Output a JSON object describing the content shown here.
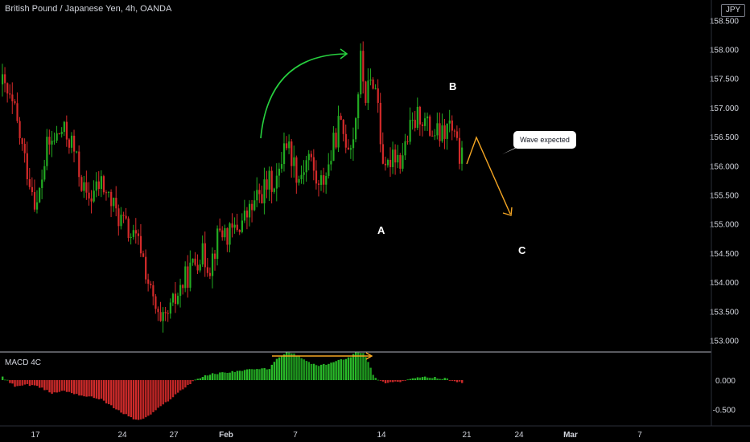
{
  "header": {
    "title": "British Pound / Japanese Yen, 4h, OANDA",
    "currency_badge": "JPY",
    "macd_title": "MACD 4C"
  },
  "annotations": {
    "callout_text": "Wave expected",
    "wave_labels": {
      "A": "A",
      "B": "B",
      "C": "C"
    }
  },
  "colors": {
    "up": "#22ab22",
    "down": "#d42a2a",
    "macd_up_bright": "#2ecc2e",
    "macd_down_bright": "#e63030",
    "arrow_green": "#27d13f",
    "arrow_orange": "#f5a623",
    "axis_text": "#d1d4dc"
  },
  "chart_data": [
    {
      "type": "candlestick",
      "title": "British Pound / Japanese Yen, 4h, OANDA",
      "ylim": [
        152.8,
        158.85
      ],
      "y_ticks": [
        "153.000",
        "153.500",
        "154.000",
        "154.500",
        "155.000",
        "155.500",
        "156.000",
        "156.500",
        "157.000",
        "157.500",
        "158.000",
        "158.500"
      ],
      "x_ticks": [
        "17",
        "24",
        "27",
        "Feb",
        "7",
        "14",
        "21",
        "24",
        "Mar",
        "7"
      ],
      "waypoints": [
        [
          0,
          157.4
        ],
        [
          5,
          156.9
        ],
        [
          9,
          156.1
        ],
        [
          14,
          155.3
        ],
        [
          18,
          156.3
        ],
        [
          24,
          156.6
        ],
        [
          28,
          156.4
        ],
        [
          34,
          155.4
        ],
        [
          40,
          155.7
        ],
        [
          46,
          155.2
        ],
        [
          52,
          154.8
        ],
        [
          56,
          154.6
        ],
        [
          60,
          153.8
        ],
        [
          64,
          153.2
        ],
        [
          68,
          153.5
        ],
        [
          72,
          153.9
        ],
        [
          76,
          154.2
        ],
        [
          80,
          154.5
        ],
        [
          84,
          154.3
        ],
        [
          88,
          154.9
        ],
        [
          92,
          154.8
        ],
        [
          96,
          155.0
        ],
        [
          100,
          155.2
        ],
        [
          104,
          155.5
        ],
        [
          108,
          155.7
        ],
        [
          112,
          155.8
        ],
        [
          114,
          156.5
        ],
        [
          116,
          156.3
        ],
        [
          120,
          155.8
        ],
        [
          124,
          156.2
        ],
        [
          128,
          155.6
        ],
        [
          132,
          156.0
        ],
        [
          136,
          156.7
        ],
        [
          140,
          156.4
        ],
        [
          142,
          156.5
        ],
        [
          144,
          157.3
        ],
        [
          145,
          157.8
        ],
        [
          147,
          157.2
        ],
        [
          150,
          157.5
        ],
        [
          152,
          157.1
        ],
        [
          153,
          156.5
        ],
        [
          155,
          155.8
        ],
        [
          158,
          156.3
        ],
        [
          161,
          156.1
        ],
        [
          165,
          156.6
        ],
        [
          169,
          156.9
        ],
        [
          173,
          156.6
        ],
        [
          178,
          156.5
        ],
        [
          181,
          156.7
        ],
        [
          184,
          156.3
        ],
        [
          186,
          156.1
        ]
      ]
    },
    {
      "type": "bar",
      "title": "MACD 4C",
      "ylim": [
        -0.75,
        0.45
      ],
      "y_ticks": [
        "0.000",
        "-0.500"
      ],
      "waypoints": [
        [
          0,
          0.05
        ],
        [
          5,
          -0.1
        ],
        [
          10,
          -0.08
        ],
        [
          15,
          -0.12
        ],
        [
          20,
          -0.22
        ],
        [
          25,
          -0.18
        ],
        [
          32,
          -0.26
        ],
        [
          40,
          -0.32
        ],
        [
          46,
          -0.5
        ],
        [
          52,
          -0.63
        ],
        [
          54,
          -0.68
        ],
        [
          58,
          -0.64
        ],
        [
          64,
          -0.45
        ],
        [
          72,
          -0.18
        ],
        [
          78,
          0.01
        ],
        [
          84,
          0.1
        ],
        [
          90,
          0.13
        ],
        [
          96,
          0.16
        ],
        [
          102,
          0.18
        ],
        [
          108,
          0.2
        ],
        [
          112,
          0.4
        ],
        [
          116,
          0.48
        ],
        [
          120,
          0.4
        ],
        [
          124,
          0.3
        ],
        [
          128,
          0.24
        ],
        [
          132,
          0.28
        ],
        [
          138,
          0.36
        ],
        [
          141,
          0.4
        ],
        [
          143,
          0.48
        ],
        [
          146,
          0.47
        ],
        [
          148,
          0.3
        ],
        [
          150,
          0.1
        ],
        [
          152,
          0.0
        ],
        [
          155,
          -0.04
        ],
        [
          158,
          -0.03
        ],
        [
          162,
          -0.02
        ],
        [
          166,
          0.03
        ],
        [
          172,
          0.05
        ],
        [
          178,
          0.03
        ],
        [
          182,
          0.0
        ],
        [
          186,
          -0.05
        ]
      ]
    }
  ]
}
